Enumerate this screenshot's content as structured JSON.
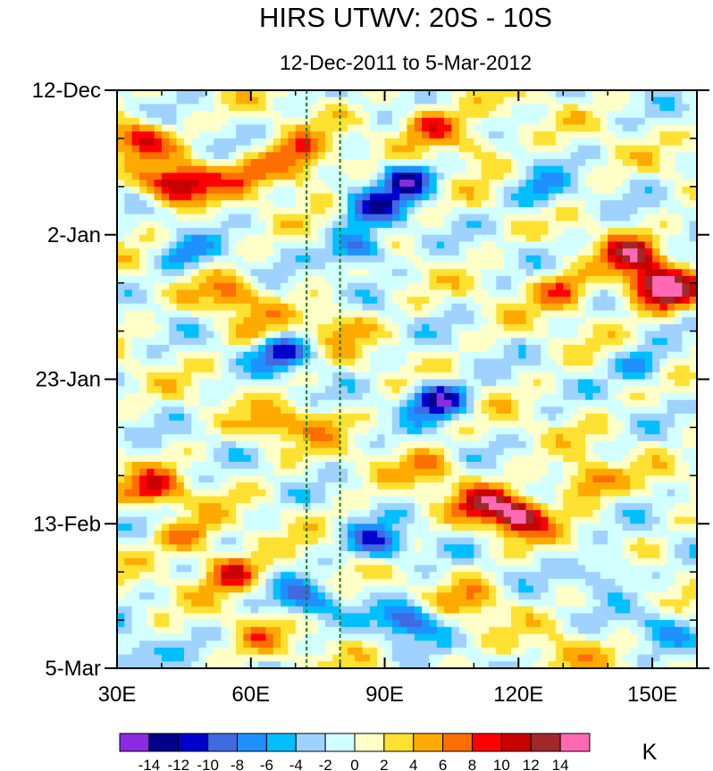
{
  "chart_data": {
    "type": "heatmap",
    "title": "HIRS UTWV: 20S - 10S",
    "subtitle": "12-Dec-2011 to 5-Mar-2012",
    "xlabel": "",
    "ylabel": "",
    "x_range": [
      30,
      160
    ],
    "x_unit": "degrees longitude east",
    "x_ticks": [
      30,
      60,
      90,
      120,
      150
    ],
    "x_tick_labels": [
      "30E",
      "60E",
      "90E",
      "120E",
      "150E"
    ],
    "y_range_days": [
      0,
      84
    ],
    "y_direction": "time increases downward",
    "y_ticks_days": [
      0,
      21,
      42,
      63,
      84
    ],
    "y_tick_labels": [
      "12-Dec",
      "2-Jan",
      "23-Jan",
      "13-Feb",
      "5-Mar"
    ],
    "reference_lines_lon": [
      72.5,
      80
    ],
    "reference_line_style": "dashed",
    "colorbar": {
      "unit_label": "K",
      "levels": [
        -14,
        -12,
        -10,
        -8,
        -6,
        -4,
        -2,
        0,
        2,
        4,
        6,
        8,
        10,
        12,
        14
      ],
      "level_labels": [
        "-14",
        "-12",
        "-10",
        "-8",
        "-6",
        "-4",
        "-2",
        "0",
        "2",
        "4",
        "6",
        "8",
        "10",
        "12",
        "14"
      ],
      "colors": [
        "#8a2be2",
        "#00008b",
        "#0000cd",
        "#4169e1",
        "#1e90ff",
        "#00bfff",
        "#a0d2ff",
        "#d2ffff",
        "#ffffc8",
        "#ffe132",
        "#ffaa00",
        "#ff6e00",
        "#ff0000",
        "#c80000",
        "#a02828",
        "#ff69b4"
      ]
    },
    "anomaly_features_K": [
      {
        "lon": 35,
        "day": 7,
        "value": 10
      },
      {
        "lon": 42,
        "day": 14,
        "value": 10
      },
      {
        "lon": 48,
        "day": 13,
        "value": 6
      },
      {
        "lon": 60,
        "day": 12,
        "value": 6
      },
      {
        "lon": 70,
        "day": 9,
        "value": 7
      },
      {
        "lon": 72,
        "day": 12,
        "value": 5
      },
      {
        "lon": 100,
        "day": 5,
        "value": 9
      },
      {
        "lon": 110,
        "day": 8,
        "value": 5
      },
      {
        "lon": 95,
        "day": 13,
        "value": -12
      },
      {
        "lon": 88,
        "day": 17,
        "value": -9
      },
      {
        "lon": 84,
        "day": 23,
        "value": -10
      },
      {
        "lon": 125,
        "day": 15,
        "value": -6
      },
      {
        "lon": 145,
        "day": 24,
        "value": 11
      },
      {
        "lon": 150,
        "day": 28,
        "value": 12
      },
      {
        "lon": 130,
        "day": 29,
        "value": 8
      },
      {
        "lon": 155,
        "day": 30,
        "value": 9
      },
      {
        "lon": 45,
        "day": 24,
        "value": -6
      },
      {
        "lon": 55,
        "day": 30,
        "value": 6
      },
      {
        "lon": 62,
        "day": 35,
        "value": 4
      },
      {
        "lon": 67,
        "day": 38,
        "value": -10
      },
      {
        "lon": 80,
        "day": 34,
        "value": 5
      },
      {
        "lon": 102,
        "day": 45,
        "value": -14
      },
      {
        "lon": 148,
        "day": 40,
        "value": -7
      },
      {
        "lon": 65,
        "day": 49,
        "value": 5
      },
      {
        "lon": 75,
        "day": 48,
        "value": 4
      },
      {
        "lon": 38,
        "day": 58,
        "value": 9
      },
      {
        "lon": 46,
        "day": 65,
        "value": 7
      },
      {
        "lon": 56,
        "day": 70,
        "value": 10
      },
      {
        "lon": 120,
        "day": 62,
        "value": 14
      },
      {
        "lon": 112,
        "day": 60,
        "value": 9
      },
      {
        "lon": 135,
        "day": 57,
        "value": 8
      },
      {
        "lon": 100,
        "day": 55,
        "value": 5
      },
      {
        "lon": 88,
        "day": 66,
        "value": -10
      },
      {
        "lon": 72,
        "day": 74,
        "value": -8
      },
      {
        "lon": 95,
        "day": 77,
        "value": -10
      },
      {
        "lon": 110,
        "day": 74,
        "value": 5
      },
      {
        "lon": 140,
        "day": 70,
        "value": -6
      },
      {
        "lon": 32,
        "day": 82,
        "value": -5
      },
      {
        "lon": 62,
        "day": 80,
        "value": 4
      },
      {
        "lon": 130,
        "day": 82,
        "value": 4
      },
      {
        "lon": 152,
        "day": 78,
        "value": -5
      }
    ]
  }
}
